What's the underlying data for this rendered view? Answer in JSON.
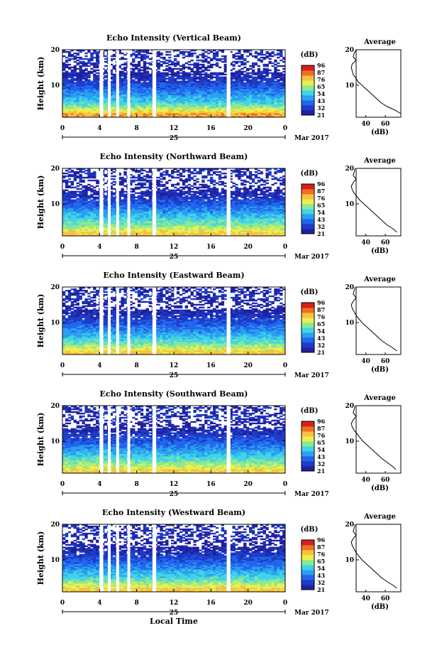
{
  "figure": {
    "shared": {
      "ylabel": "Height (km)",
      "xticks": [
        "0",
        "4",
        "8",
        "12",
        "16",
        "20",
        "0"
      ],
      "date_day": "25",
      "date_month": "Mar 2017",
      "colorbar_unit": "(dB)",
      "colorbar_ticks": [
        "96",
        "87",
        "76",
        "65",
        "54",
        "43",
        "32",
        "21"
      ],
      "colors": [
        "#2020a0",
        "#1e3cc8",
        "#2266ee",
        "#2aa0f0",
        "#40d4e8",
        "#8ee890",
        "#e8f050",
        "#f8c040",
        "#f07020",
        "#d81e1e"
      ],
      "profile_title": "Average",
      "profile_xlabel": "(dB)",
      "profile_xticks": [
        "40",
        "60"
      ],
      "yticks": [
        "20",
        "10"
      ],
      "xlabel": "Local Time"
    }
  },
  "chart_data": [
    {
      "type": "heatmap",
      "title": "Echo Intensity (Vertical Beam)",
      "xlabel": "Local Time",
      "ylabel": "Height (km)",
      "xlim": [
        0,
        24
      ],
      "ylim": [
        1,
        20
      ],
      "xticks": [
        0,
        4,
        8,
        12,
        16,
        20,
        24
      ],
      "yticks": [
        10,
        20
      ],
      "date": "25 Mar 2017",
      "colorbar": {
        "label": "(dB)",
        "ticks": [
          96,
          87,
          76,
          65,
          54,
          43,
          32,
          21
        ]
      },
      "data_gaps_hours": [
        [
          4.0,
          4.4
        ],
        [
          4.9,
          5.2
        ],
        [
          5.8,
          6.1
        ],
        [
          7.0,
          7.3
        ],
        [
          9.7,
          10.1
        ],
        [
          17.7,
          18.1
        ]
      ],
      "profile": {
        "title": "Average",
        "xlabel": "(dB)",
        "xticks": [
          40,
          60
        ],
        "yticks": [
          10,
          20
        ],
        "height_km": [
          2,
          3,
          4,
          5,
          6,
          7,
          8,
          9,
          10,
          11,
          12,
          13,
          14,
          15,
          16,
          17,
          18,
          19,
          20
        ],
        "values_db": [
          76,
          70,
          62,
          56,
          52,
          48,
          44,
          40,
          36,
          32,
          30,
          27,
          26,
          25,
          26,
          30,
          27,
          28,
          30
        ]
      }
    },
    {
      "type": "heatmap",
      "title": "Echo Intensity (Northward Beam)",
      "xlabel": "Local Time",
      "ylabel": "Height (km)",
      "xlim": [
        0,
        24
      ],
      "ylim": [
        1,
        20
      ],
      "xticks": [
        0,
        4,
        8,
        12,
        16,
        20,
        24
      ],
      "yticks": [
        10,
        20
      ],
      "date": "25 Mar 2017",
      "colorbar": {
        "label": "(dB)",
        "ticks": [
          96,
          87,
          76,
          65,
          54,
          43,
          32,
          21
        ]
      },
      "data_gaps_hours": [
        [
          4.0,
          4.4
        ],
        [
          4.9,
          5.2
        ],
        [
          5.8,
          6.1
        ],
        [
          7.0,
          7.3
        ],
        [
          9.7,
          10.1
        ],
        [
          17.7,
          18.1
        ]
      ],
      "profile": {
        "title": "Average",
        "xlabel": "(dB)",
        "xticks": [
          40,
          60
        ],
        "yticks": [
          10,
          20
        ],
        "height_km": [
          2,
          3,
          4,
          5,
          6,
          7,
          8,
          9,
          10,
          11,
          12,
          13,
          14,
          15,
          16,
          17,
          18,
          19,
          20
        ],
        "values_db": [
          72,
          68,
          62,
          58,
          54,
          50,
          46,
          42,
          38,
          34,
          31,
          28,
          26,
          25,
          27,
          30,
          27,
          28,
          29
        ]
      }
    },
    {
      "type": "heatmap",
      "title": "Echo Intensity (Eastward Beam)",
      "xlabel": "Local Time",
      "ylabel": "Height (km)",
      "xlim": [
        0,
        24
      ],
      "ylim": [
        1,
        20
      ],
      "xticks": [
        0,
        4,
        8,
        12,
        16,
        20,
        24
      ],
      "yticks": [
        10,
        20
      ],
      "date": "25 Mar 2017",
      "colorbar": {
        "label": "(dB)",
        "ticks": [
          96,
          87,
          76,
          65,
          54,
          43,
          32,
          21
        ]
      },
      "data_gaps_hours": [
        [
          4.0,
          4.4
        ],
        [
          4.9,
          5.2
        ],
        [
          5.8,
          6.1
        ],
        [
          7.0,
          7.3
        ],
        [
          9.7,
          10.1
        ],
        [
          17.7,
          18.1
        ]
      ],
      "profile": {
        "title": "Average",
        "xlabel": "(dB)",
        "xticks": [
          40,
          60
        ],
        "yticks": [
          10,
          20
        ],
        "height_km": [
          2,
          3,
          4,
          5,
          6,
          7,
          8,
          9,
          10,
          11,
          12,
          13,
          14,
          15,
          16,
          17,
          18,
          19,
          20
        ],
        "values_db": [
          72,
          67,
          61,
          56,
          52,
          48,
          44,
          40,
          36,
          33,
          30,
          28,
          26,
          25,
          27,
          30,
          27,
          28,
          29
        ]
      }
    },
    {
      "type": "heatmap",
      "title": "Echo Intensity (Southward Beam)",
      "xlabel": "Local Time",
      "ylabel": "Height (km)",
      "xlim": [
        0,
        24
      ],
      "ylim": [
        1,
        20
      ],
      "xticks": [
        0,
        4,
        8,
        12,
        16,
        20,
        24
      ],
      "yticks": [
        10,
        20
      ],
      "date": "25 Mar 2017",
      "colorbar": {
        "label": "(dB)",
        "ticks": [
          96,
          87,
          76,
          65,
          54,
          43,
          32,
          21
        ]
      },
      "data_gaps_hours": [
        [
          4.0,
          4.4
        ],
        [
          4.9,
          5.2
        ],
        [
          5.8,
          6.1
        ],
        [
          7.0,
          7.3
        ],
        [
          9.7,
          10.1
        ],
        [
          17.7,
          18.1
        ]
      ],
      "profile": {
        "title": "Average",
        "xlabel": "(dB)",
        "xticks": [
          40,
          60
        ],
        "yticks": [
          10,
          20
        ],
        "height_km": [
          2,
          3,
          4,
          5,
          6,
          7,
          8,
          9,
          10,
          11,
          12,
          13,
          14,
          15,
          16,
          17,
          18,
          19,
          20
        ],
        "values_db": [
          71,
          67,
          62,
          57,
          53,
          49,
          45,
          41,
          37,
          34,
          31,
          28,
          26,
          25,
          27,
          30,
          27,
          28,
          29
        ]
      }
    },
    {
      "type": "heatmap",
      "title": "Echo Intensity (Westward Beam)",
      "xlabel": "Local Time",
      "ylabel": "Height (km)",
      "xlim": [
        0,
        24
      ],
      "ylim": [
        1,
        20
      ],
      "xticks": [
        0,
        4,
        8,
        12,
        16,
        20,
        24
      ],
      "yticks": [
        10,
        20
      ],
      "date": "25 Mar 2017",
      "colorbar": {
        "label": "(dB)",
        "ticks": [
          96,
          87,
          76,
          65,
          54,
          43,
          32,
          21
        ]
      },
      "data_gaps_hours": [
        [
          4.0,
          4.4
        ],
        [
          4.9,
          5.2
        ],
        [
          5.8,
          6.1
        ],
        [
          7.0,
          7.3
        ],
        [
          9.7,
          10.1
        ],
        [
          17.7,
          18.1
        ]
      ],
      "profile": {
        "title": "Average",
        "xlabel": "(dB)",
        "xticks": [
          40,
          60
        ],
        "yticks": [
          10,
          20
        ],
        "height_km": [
          2,
          3,
          4,
          5,
          6,
          7,
          8,
          9,
          10,
          11,
          12,
          13,
          14,
          15,
          16,
          17,
          18,
          19,
          20
        ],
        "values_db": [
          72,
          67,
          61,
          56,
          52,
          48,
          44,
          40,
          36,
          33,
          30,
          28,
          26,
          25,
          27,
          30,
          27,
          28,
          29
        ]
      }
    }
  ]
}
